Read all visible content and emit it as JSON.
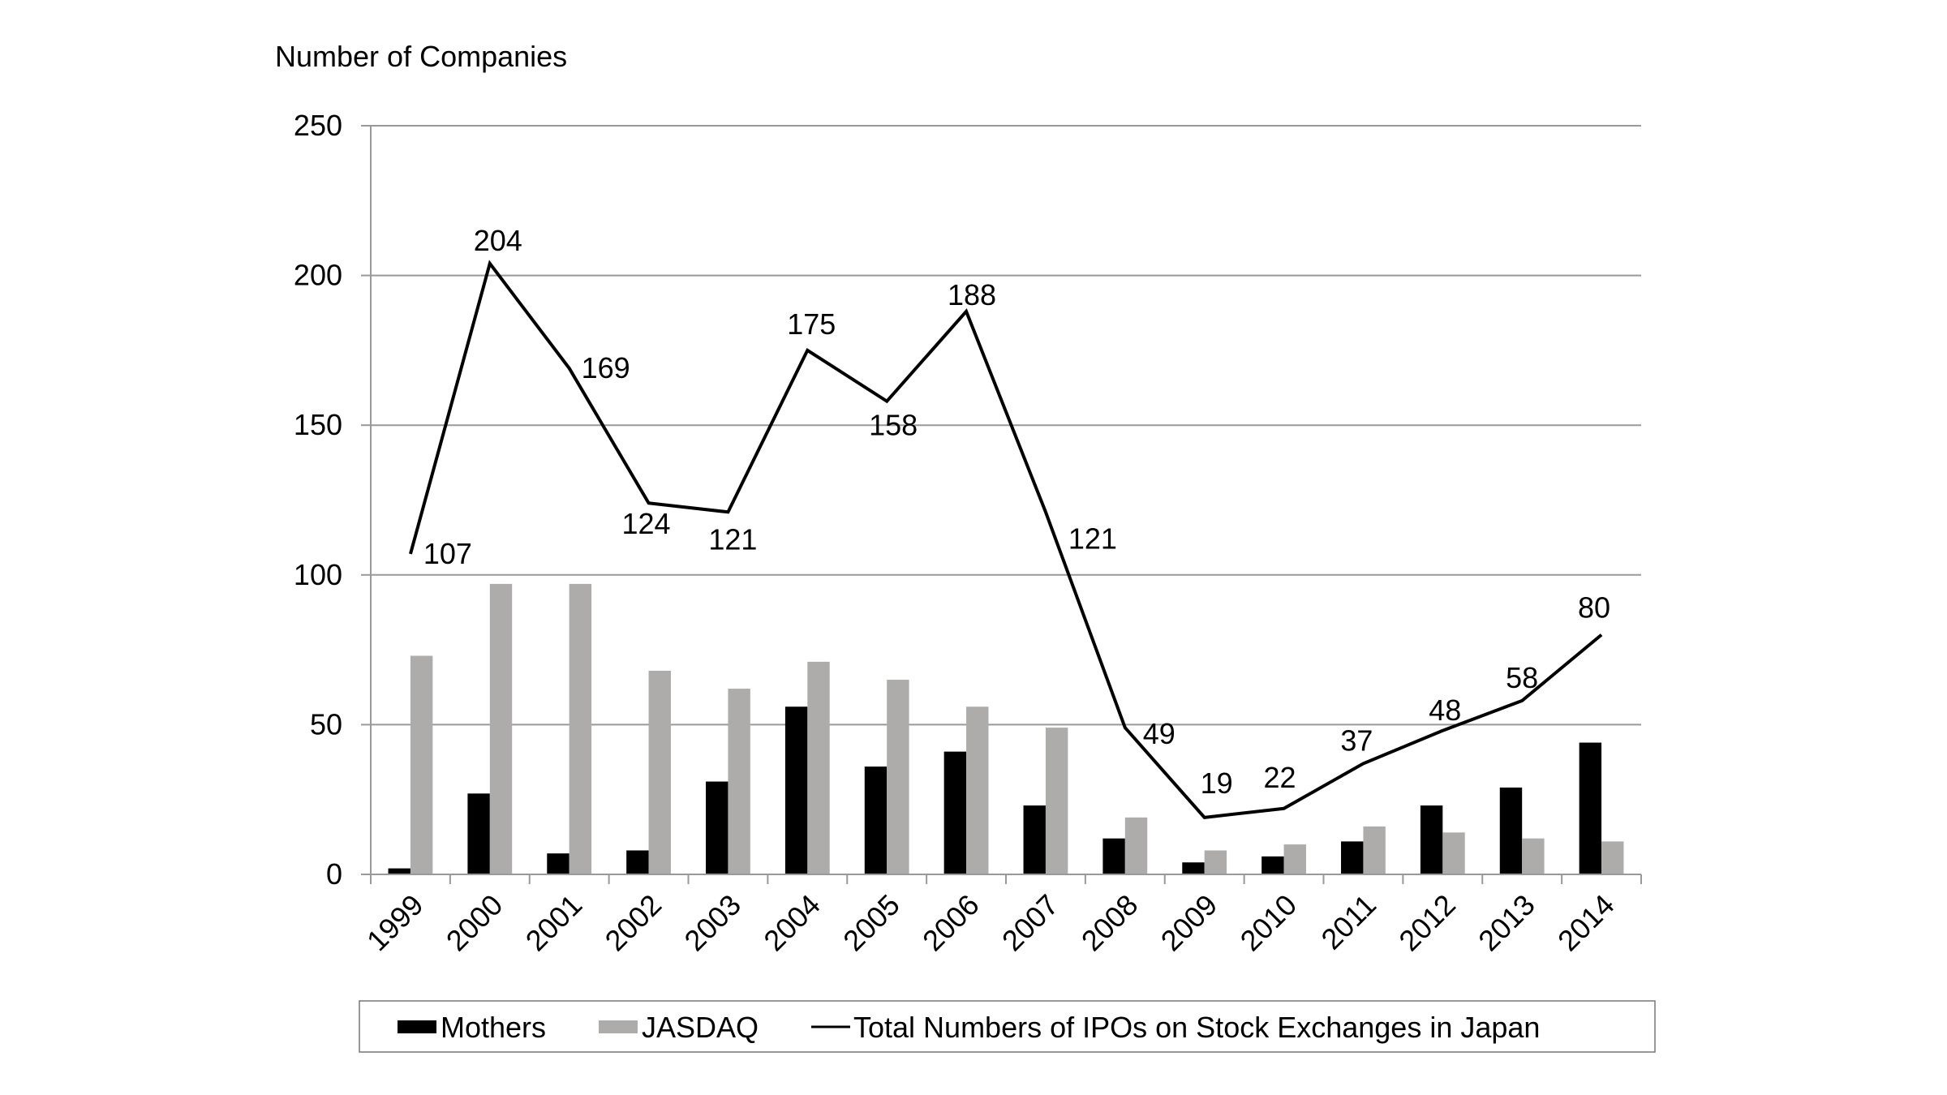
{
  "chart_data": {
    "type": "bar+line",
    "ylabel": "Number of Companies",
    "ylim": [
      0,
      250
    ],
    "yticks": [
      0,
      50,
      100,
      150,
      200,
      250
    ],
    "grid": true,
    "legend_position": "bottom",
    "categories": [
      "1999",
      "2000",
      "2001",
      "2002",
      "2003",
      "2004",
      "2005",
      "2006",
      "2007",
      "2008",
      "2009",
      "2010",
      "2011",
      "2012",
      "2013",
      "2014"
    ],
    "series": [
      {
        "name": "Mothers",
        "type": "bar",
        "color": "#000000",
        "values": [
          2,
          27,
          7,
          8,
          31,
          56,
          36,
          41,
          23,
          12,
          4,
          6,
          11,
          23,
          29,
          44
        ]
      },
      {
        "name": "JASDAQ",
        "type": "bar",
        "color": "#aeabab",
        "values": [
          73,
          97,
          97,
          68,
          62,
          71,
          65,
          56,
          49,
          19,
          8,
          10,
          16,
          14,
          12,
          11
        ]
      },
      {
        "name": "Total Numbers of IPOs on Stock Exchanges in Japan",
        "type": "line",
        "color": "#000000",
        "values": [
          107,
          204,
          169,
          124,
          121,
          175,
          158,
          188,
          121,
          49,
          19,
          22,
          37,
          48,
          58,
          80
        ]
      }
    ]
  }
}
